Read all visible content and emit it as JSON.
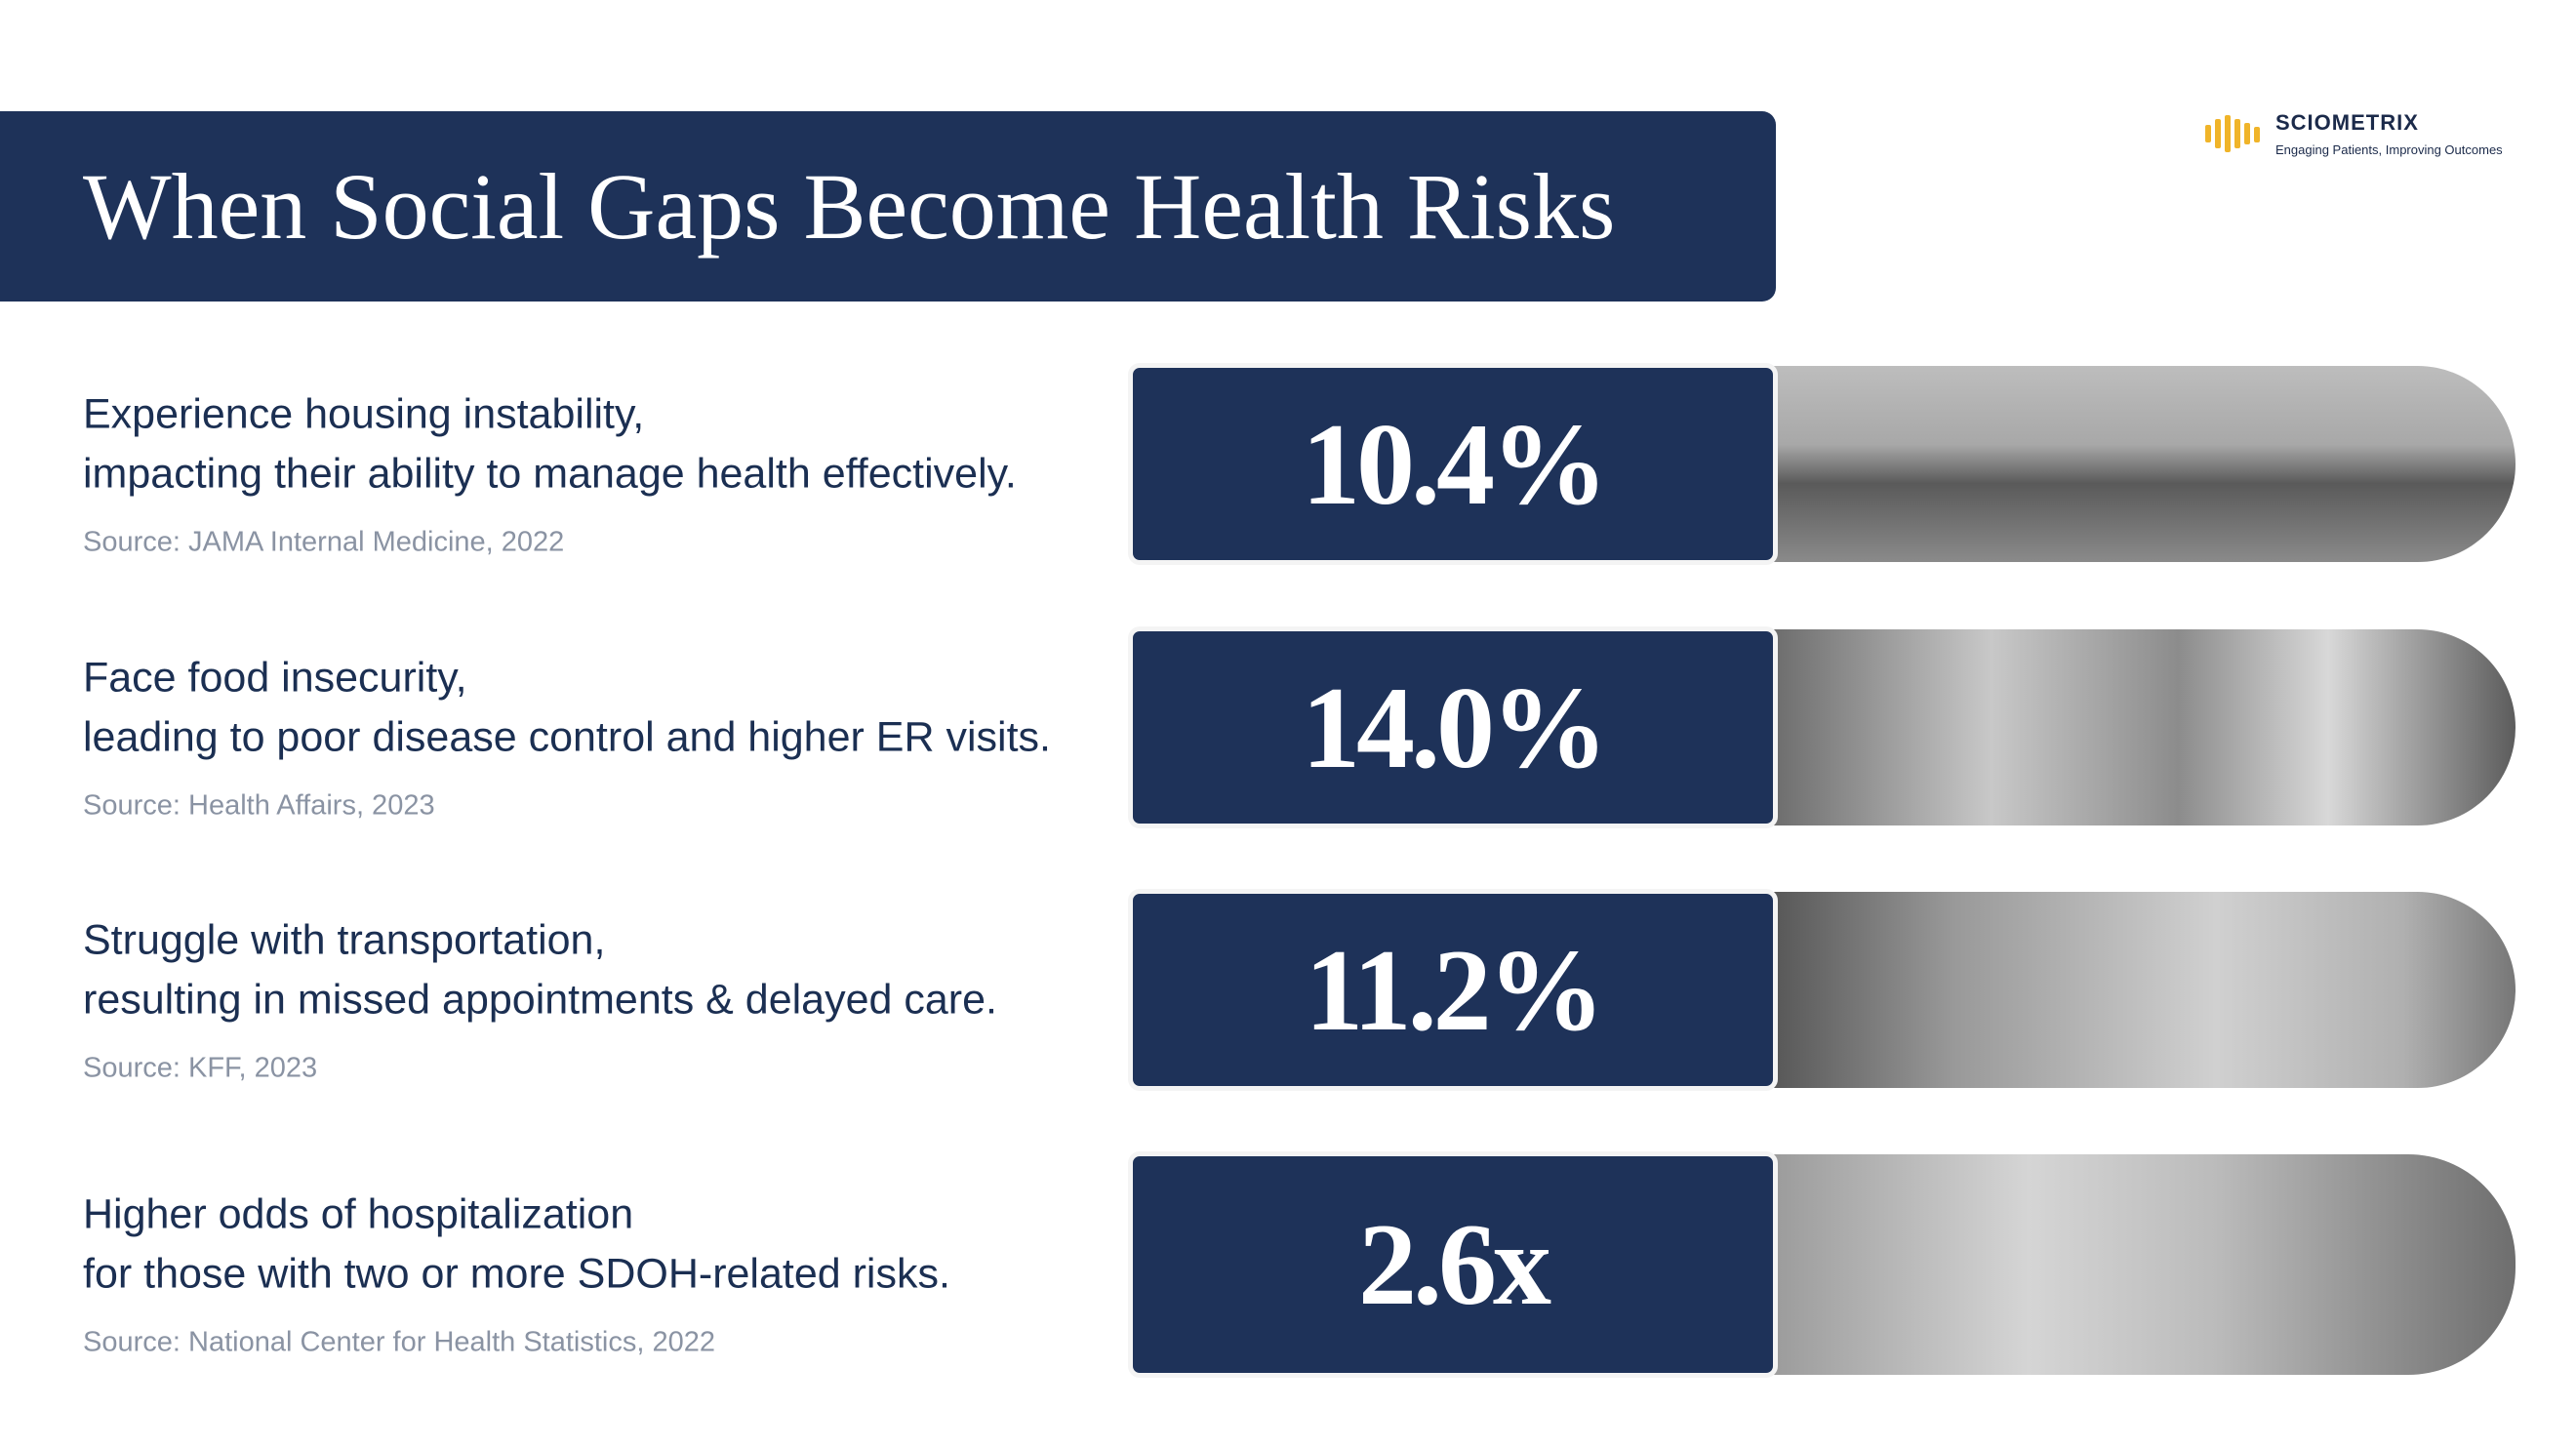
{
  "header": {
    "title": "When Social Gaps Become Health Risks"
  },
  "logo": {
    "name": "SCIOMETRIX",
    "tagline": "Engaging Patients, Improving Outcomes"
  },
  "items": [
    {
      "lines": [
        "Experience housing instability,",
        "impacting their ability to manage health effectively."
      ],
      "source": "Source: JAMA Internal Medicine, 2022",
      "stat": "10.4%"
    },
    {
      "lines": [
        "Face food insecurity,",
        "leading to poor disease control and higher ER visits."
      ],
      "source": "Source: Health Affairs, 2023",
      "stat": "14.0%"
    },
    {
      "lines": [
        "Struggle with transportation,",
        "resulting in missed appointments & delayed care."
      ],
      "source": "Source: KFF, 2023",
      "stat": "11.2%"
    },
    {
      "lines": [
        "Higher odds of hospitalization",
        "for those with two or more SDOH-related risks."
      ],
      "source": "Source: National Center for Health Statistics, 2022",
      "stat": "2.6x"
    }
  ]
}
